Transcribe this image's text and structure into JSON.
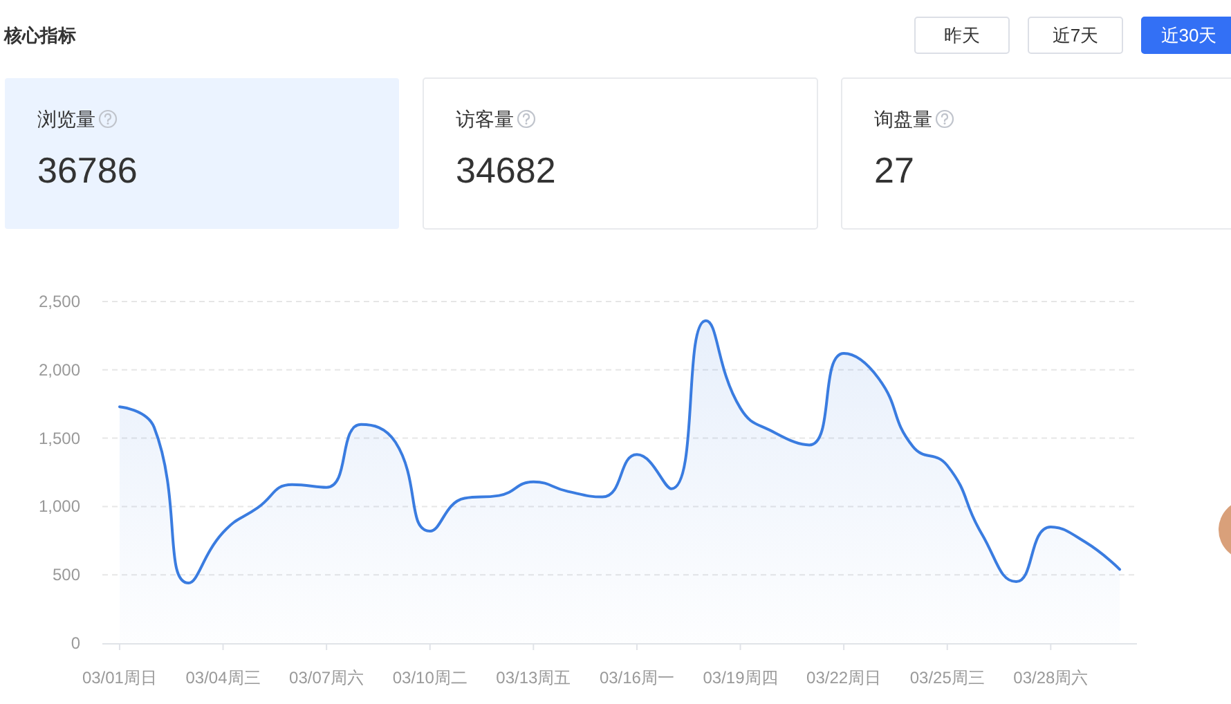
{
  "chart_data": [
    {
      "type": "other",
      "title": "核心指标",
      "categories": [
        "昨天",
        "近7天",
        "近30天"
      ],
      "colors": [
        "#ffffff",
        "#ffffff",
        "#3370f5"
      ]
    },
    {
      "type": "other",
      "categories": [
        "浏览量",
        "访客量",
        "询盘量"
      ],
      "values": [
        36786,
        34682,
        27
      ],
      "data_labels": true,
      "colors": [
        "#ebf3ff",
        "#ffffff",
        "#ffffff"
      ]
    },
    {
      "type": "area",
      "categories": [
        "03/01周日",
        null,
        null,
        "03/04周三",
        null,
        null,
        "03/07周六",
        null,
        null,
        "03/10周二",
        null,
        null,
        "03/13周五",
        null,
        null,
        "03/16周一",
        null,
        null,
        "03/19周四",
        null,
        null,
        "03/22周日",
        null,
        null,
        "03/25周三",
        null,
        null,
        "03/28周六",
        null,
        null
      ],
      "series": [
        {
          "color": "#3a7ce0",
          "values": [
            1730,
            1580,
            440,
            810,
            990,
            1160,
            1140,
            1600,
            1470,
            820,
            1060,
            1080,
            1180,
            1110,
            1070,
            1380,
            1130,
            2360,
            1720,
            1540,
            1450,
            2120,
            1940,
            1440,
            1300,
            800,
            450,
            850,
            740,
            540
          ]
        }
      ],
      "ylim": [
        0,
        2500
      ],
      "yticks": [
        0,
        500,
        {
          "value": 1000,
          "label": "1,000"
        },
        {
          "value": 1500,
          "label": "1,500"
        },
        {
          "value": 2000,
          "label": "2,000"
        },
        {
          "value": 2500,
          "label": "2,500"
        }
      ],
      "grid": "y"
    }
  ]
}
